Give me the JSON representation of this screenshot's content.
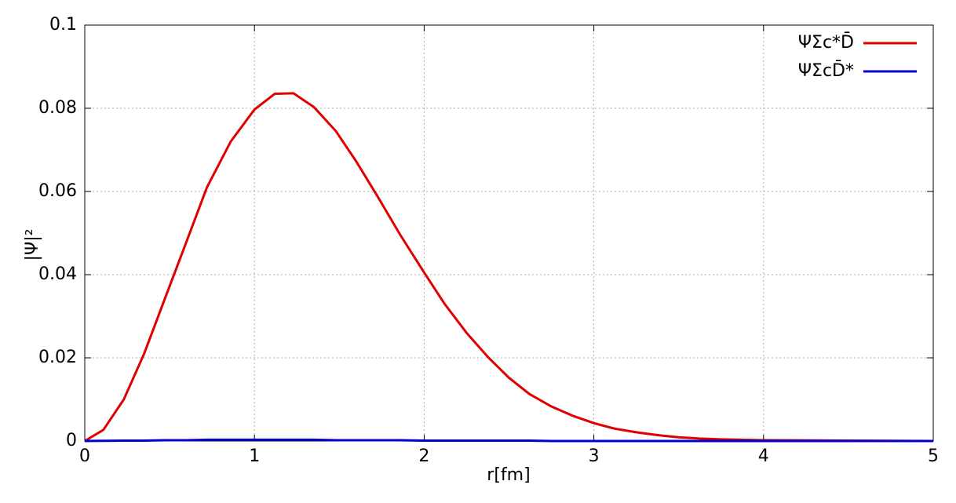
{
  "chart_data": {
    "type": "line",
    "x_label": "r[fm]",
    "y_label": "|Ψ|²",
    "xlim": [
      0,
      5
    ],
    "xticks": [
      0,
      1,
      2,
      3,
      4,
      5
    ],
    "ylim": [
      0,
      0.1
    ],
    "yticks": [
      0,
      0.02,
      0.04,
      0.06,
      0.08,
      0.1
    ],
    "grid": true,
    "legend": "upper right",
    "x": [
      0,
      0.11,
      0.23,
      0.35,
      0.47,
      0.6,
      0.72,
      0.86,
      1.0,
      1.12,
      1.23,
      1.35,
      1.48,
      1.6,
      1.73,
      1.86,
      2.0,
      2.12,
      2.25,
      2.38,
      2.5,
      2.62,
      2.75,
      2.88,
      3.0,
      3.12,
      3.25,
      3.38,
      3.5,
      3.62,
      3.75,
      4.0,
      4.5,
      5.0
    ],
    "series": [
      {
        "name": "ΨΣc*D̄",
        "color": "#e00000",
        "values": [
          0,
          0.0027,
          0.01,
          0.021,
          0.034,
          0.048,
          0.061,
          0.072,
          0.0797,
          0.0835,
          0.0836,
          0.0803,
          0.0745,
          0.0672,
          0.0585,
          0.0495,
          0.0405,
          0.033,
          0.026,
          0.02,
          0.0152,
          0.0113,
          0.0083,
          0.006,
          0.0043,
          0.003,
          0.0021,
          0.0014,
          0.0009,
          0.0006,
          0.0004,
          0.0002,
          0.0001,
          0
        ]
      },
      {
        "name": "ΨΣcD̄*",
        "color": "#0000d0",
        "values": [
          0,
          5e-05,
          0.0001,
          0.0001,
          0.0002,
          0.0002,
          0.0003,
          0.0003,
          0.0003,
          0.0003,
          0.0003,
          0.0003,
          0.0002,
          0.0002,
          0.0002,
          0.0002,
          0.0001,
          0.0001,
          0.0001,
          0.0001,
          0.0001,
          0.0001,
          0,
          0,
          0,
          0,
          0,
          0,
          0,
          0,
          0,
          0,
          0,
          0
        ]
      }
    ]
  }
}
